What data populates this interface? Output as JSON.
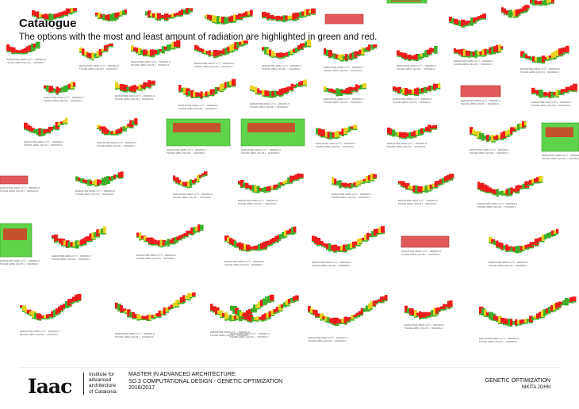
{
  "header": {
    "title": "Catalogue",
    "subtitle": "The options with the most and least amount of radiation are highlighted in green and red."
  },
  "catalogue": {
    "caption_line1": "RADIATION AREA (m²) : 000000.0",
    "caption_line2": "FLOOR AREA (SQ.M.) : 000000.0",
    "colors": {
      "high_radiation": "#ee1c1c",
      "mid_radiation": "#e8d020",
      "low_radiation": "#3fae2a",
      "most_radiation_highlight": "#e05a5a",
      "least_radiation_highlight": "#5fd34a"
    }
  },
  "footer": {
    "logo": "Iaac",
    "institute_lines": [
      "Institute for",
      "advanced",
      "architecture",
      "of Catalonia"
    ],
    "program_lines": [
      "MASTER IN ADVANCED ARCHITECTURE",
      "SO.3 COMPUTATIONAL DESIGN - GENETIC OPTIMIZATION",
      "2016/2017"
    ],
    "project_title": "GENETIC OPTIMIZATION",
    "author": "NIKITA JOHN"
  }
}
